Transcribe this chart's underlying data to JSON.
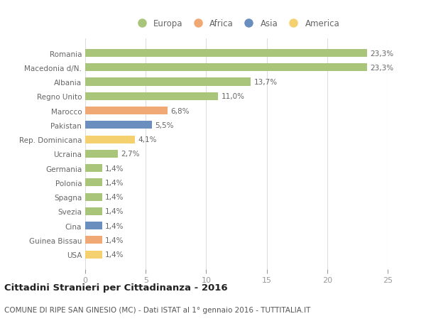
{
  "countries": [
    "Romania",
    "Macedonia d/N.",
    "Albania",
    "Regno Unito",
    "Marocco",
    "Pakistan",
    "Rep. Dominicana",
    "Ucraina",
    "Germania",
    "Polonia",
    "Spagna",
    "Svezia",
    "Cina",
    "Guinea Bissau",
    "USA"
  ],
  "values": [
    23.3,
    23.3,
    13.7,
    11.0,
    6.8,
    5.5,
    4.1,
    2.7,
    1.4,
    1.4,
    1.4,
    1.4,
    1.4,
    1.4,
    1.4
  ],
  "labels": [
    "23,3%",
    "23,3%",
    "13,7%",
    "11,0%",
    "6,8%",
    "5,5%",
    "4,1%",
    "2,7%",
    "1,4%",
    "1,4%",
    "1,4%",
    "1,4%",
    "1,4%",
    "1,4%",
    "1,4%"
  ],
  "continents": [
    "Europa",
    "Europa",
    "Europa",
    "Europa",
    "Africa",
    "Asia",
    "America",
    "Europa",
    "Europa",
    "Europa",
    "Europa",
    "Europa",
    "Asia",
    "Africa",
    "America"
  ],
  "colors": {
    "Europa": "#a8c57a",
    "Africa": "#f0a875",
    "Asia": "#6a8fbf",
    "America": "#f5d06e"
  },
  "legend_order": [
    "Europa",
    "Africa",
    "Asia",
    "America"
  ],
  "xlim": [
    0,
    25
  ],
  "xticks": [
    0,
    5,
    10,
    15,
    20,
    25
  ],
  "title_bold": "Cittadini Stranieri per Cittadinanza - 2016",
  "subtitle": "COMUNE DI RIPE SAN GINESIO (MC) - Dati ISTAT al 1° gennaio 2016 - TUTTITALIA.IT",
  "background_color": "#ffffff",
  "bar_height": 0.55,
  "label_fontsize": 7.5,
  "ytick_fontsize": 7.5,
  "xtick_fontsize": 8,
  "legend_fontsize": 8.5,
  "title_fontsize": 9.5,
  "subtitle_fontsize": 7.5
}
